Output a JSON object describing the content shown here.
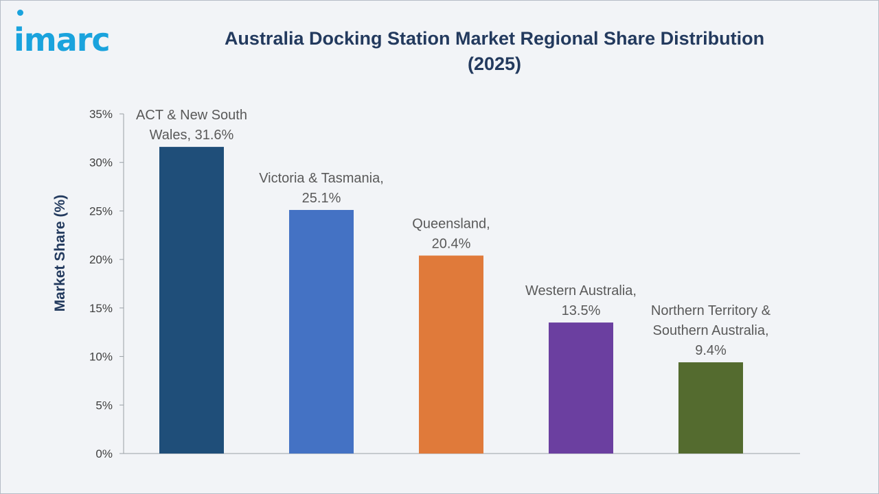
{
  "brand": {
    "logo_text": "imarc",
    "accent": "#1aa3dd"
  },
  "header": {
    "title_line1": "Australia Docking Station Market Regional Share Distribution",
    "title_line2": "(2025)"
  },
  "chart_data": {
    "type": "bar",
    "title": "Australia Docking Station Market Regional Share Distribution (2025)",
    "xlabel": "",
    "ylabel": "Market Share (%)",
    "ylim": [
      0,
      35
    ],
    "yticks": [
      "0%",
      "5%",
      "10%",
      "15%",
      "20%",
      "25%",
      "30%",
      "35%"
    ],
    "ytick_values": [
      0,
      5,
      10,
      15,
      20,
      25,
      30,
      35
    ],
    "grid": false,
    "categories": [
      "ACT & New South Wales",
      "Victoria & Tasmania",
      "Queensland",
      "Western Australia",
      "Northern Territory & Southern Australia"
    ],
    "values": [
      31.6,
      25.1,
      20.4,
      13.5,
      9.4
    ],
    "data_labels": [
      [
        "ACT & New South",
        "Wales, 31.6%"
      ],
      [
        "Victoria & Tasmania,",
        "25.1%"
      ],
      [
        "Queensland,",
        "20.4%"
      ],
      [
        "Western Australia,",
        "13.5%"
      ],
      [
        "Northern Territory &",
        "Southern Australia,",
        "9.4%"
      ]
    ],
    "colors": [
      "#1f4e79",
      "#4472c4",
      "#e07a3a",
      "#6b3fa0",
      "#546b2f"
    ]
  }
}
